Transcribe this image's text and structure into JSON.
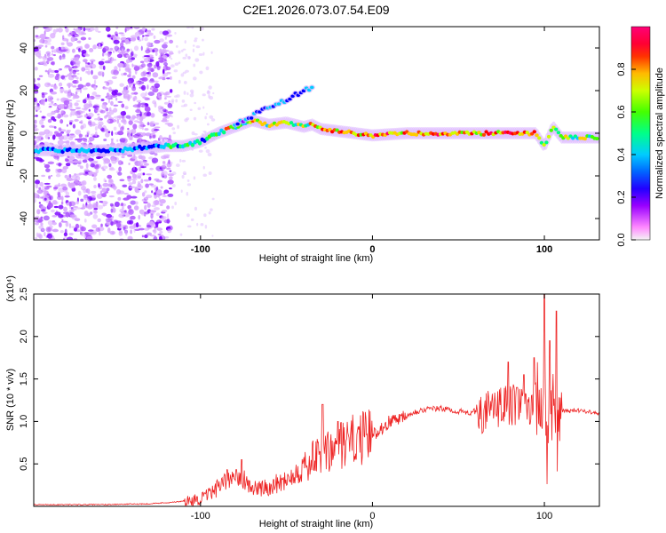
{
  "chart_data": [
    {
      "type": "heatmap",
      "title": "C2E1.2026.073.07.54.E09",
      "xlabel": "Height of straight line (km)",
      "ylabel": "Frequency (Hz)",
      "xlim": [
        -197,
        132
      ],
      "ylim": [
        -50,
        50
      ],
      "xticks": [
        -100,
        0,
        100
      ],
      "yticks": [
        -40,
        -20,
        0,
        20,
        40
      ],
      "colorbar": {
        "label": "Normalized spectral amplitude",
        "range": [
          0,
          1
        ],
        "ticks": [
          "0.0",
          "0.2",
          "0.4",
          "0.6",
          "0.8"
        ],
        "colors": [
          "#f4f4f4",
          "#ff66ff",
          "#8800ff",
          "#0000ff",
          "#00ccff",
          "#00ff80",
          "#44ff00",
          "#ccff00",
          "#ffcc00",
          "#ff4400",
          "#ff0000",
          "#ff0066"
        ]
      },
      "ridge": {
        "x": [
          -197,
          -150,
          -120,
          -110,
          -100,
          -90,
          -80,
          -70,
          -60,
          -50,
          -40,
          -35,
          -30,
          -20,
          -10,
          0,
          20,
          40,
          60,
          80,
          95,
          100,
          105,
          110,
          132
        ],
        "y": [
          -8,
          -8,
          -6,
          -6,
          -4,
          0,
          3,
          6,
          4,
          5,
          3,
          4,
          2,
          1,
          0,
          -1,
          0,
          0,
          0,
          0,
          0,
          -6,
          3,
          -2,
          -2
        ]
      },
      "upper_branch": {
        "x": [
          -80,
          -70,
          -60,
          -50,
          -42,
          -35
        ],
        "y": [
          4,
          8,
          12,
          16,
          19,
          22
        ]
      }
    },
    {
      "type": "line",
      "xlabel": "Height of straight line (km)",
      "ylabel": "SNR (10 * v/v)",
      "y_multiplier": "(x10⁴)",
      "xlim": [
        -197,
        132
      ],
      "ylim": [
        0,
        2.5
      ],
      "xticks": [
        -100,
        0,
        100
      ],
      "yticks": [
        "0.5",
        "1.0",
        "1.5",
        "2.0",
        "2.5"
      ],
      "color": "#ee2222",
      "series": [
        {
          "name": "SNR",
          "x": [
            -197,
            -160,
            -130,
            -115,
            -105,
            -98,
            -92,
            -85,
            -80,
            -77,
            -74,
            -70,
            -65,
            -58,
            -52,
            -46,
            -40,
            -34,
            -30,
            -26,
            -20,
            -14,
            -8,
            -2,
            4,
            10,
            16,
            22,
            28,
            34,
            40,
            50,
            56,
            60,
            66,
            72,
            78,
            84,
            88,
            92,
            96,
            98,
            100,
            102,
            104,
            106,
            108,
            112,
            120,
            132
          ],
          "y": [
            0.02,
            0.02,
            0.03,
            0.05,
            0.07,
            0.1,
            0.18,
            0.3,
            0.4,
            0.38,
            0.3,
            0.22,
            0.2,
            0.25,
            0.3,
            0.38,
            0.45,
            0.55,
            0.6,
            0.62,
            0.7,
            0.75,
            0.8,
            0.82,
            0.9,
            1.0,
            1.05,
            1.1,
            1.13,
            1.15,
            1.15,
            1.12,
            1.1,
            1.12,
            1.1,
            1.15,
            1.18,
            1.2,
            1.15,
            1.2,
            1.25,
            1.1,
            1.3,
            1.0,
            1.25,
            1.1,
            1.12,
            1.12,
            1.13,
            1.1
          ]
        }
      ],
      "peaks": [
        {
          "x": -76,
          "y": 0.55
        },
        {
          "x": -29,
          "y": 1.2
        },
        {
          "x": -20,
          "y": 1.0
        },
        {
          "x": 79,
          "y": 1.7
        },
        {
          "x": 84,
          "y": 1.4
        },
        {
          "x": 88,
          "y": 1.55
        },
        {
          "x": 94,
          "y": 1.75
        },
        {
          "x": 100,
          "y": 2.5
        },
        {
          "x": 103,
          "y": 1.95
        },
        {
          "x": 107,
          "y": 2.3
        }
      ]
    }
  ]
}
